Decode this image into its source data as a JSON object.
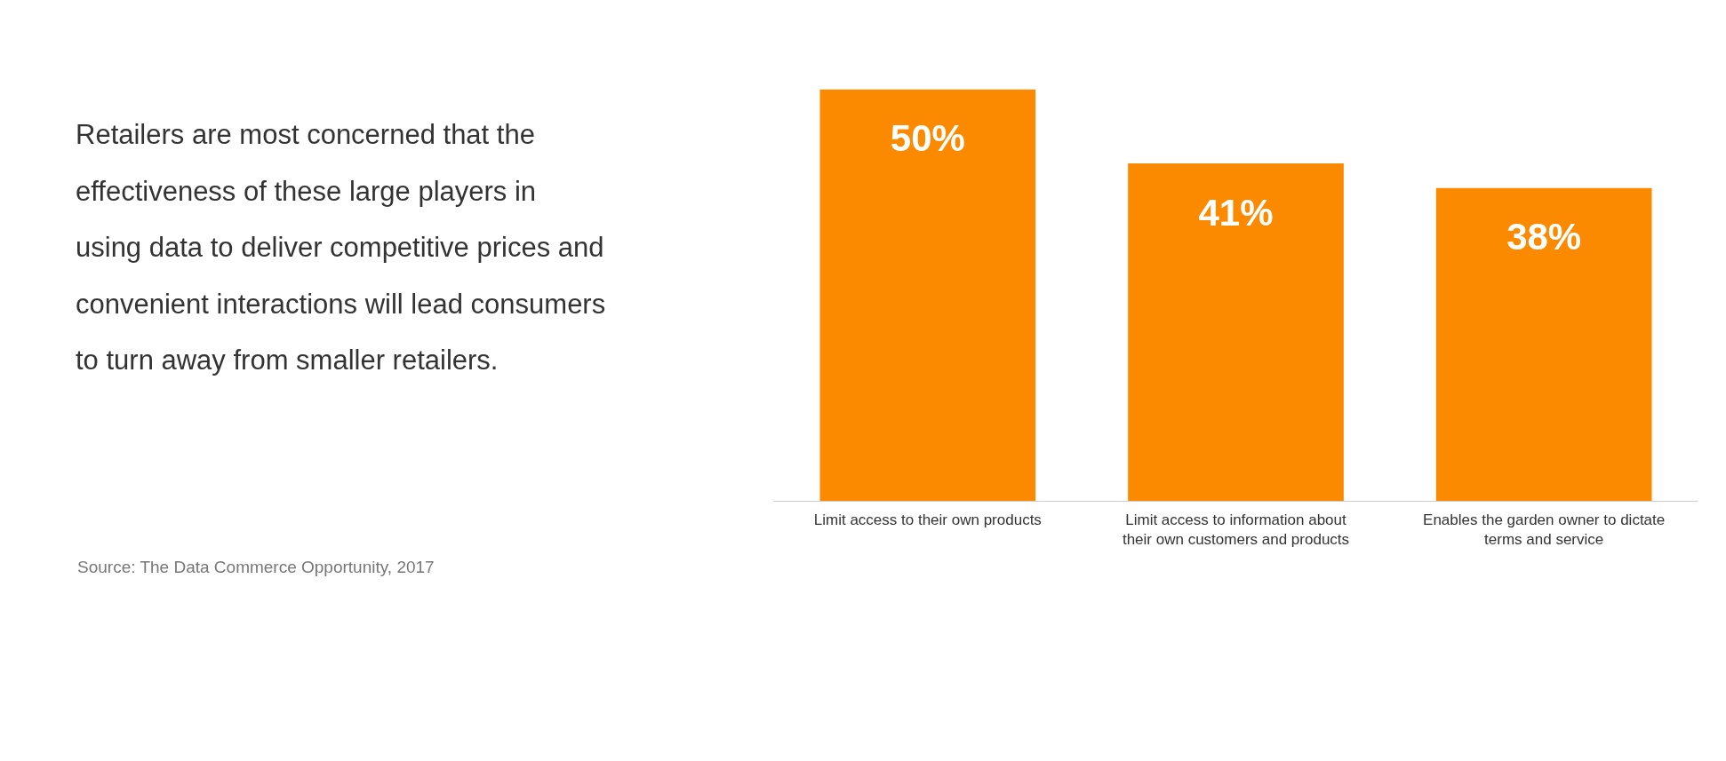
{
  "chart_data": {
    "type": "bar",
    "title": "Retailers are most concerned that the effectiveness of these large players in using data to deliver competitive prices and convenient interactions will lead consumers to turn away from smaller retailers.",
    "categories": [
      "Limit access to their own products",
      "Limit access to information about their own customers and products",
      "Enables the garden owner to dictate terms and service"
    ],
    "values": [
      50,
      41,
      38
    ],
    "value_labels": [
      "50%",
      "41%",
      "38%"
    ],
    "color": "#fb8a00",
    "grid": false,
    "annotations": [
      "Source:  The Data Commerce Opportunity, 2017"
    ]
  }
}
